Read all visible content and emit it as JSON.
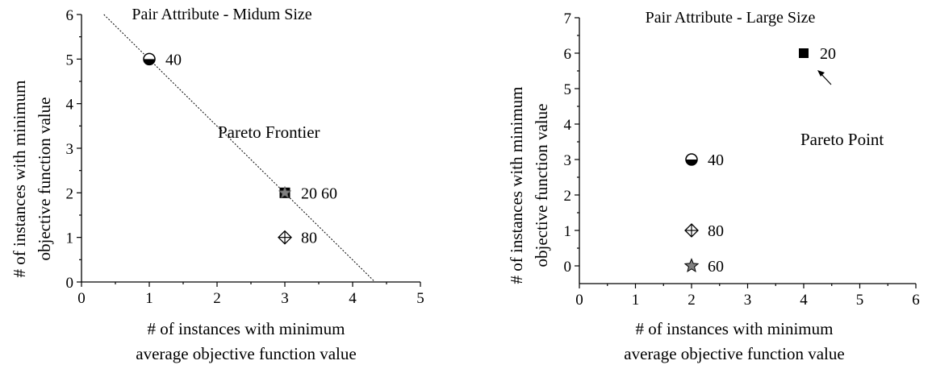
{
  "chart_data": [
    {
      "type": "scatter",
      "title": "Pair Attribute - Midum Size",
      "xlabel": [
        "# of instances with minimum",
        "average objective function value"
      ],
      "ylabel": [
        "# of instances with minimum",
        "objective function value"
      ],
      "xlim": [
        0,
        5
      ],
      "ylim": [
        0,
        6
      ],
      "xticks": [
        "0",
        "1",
        "2",
        "3",
        "4",
        "5"
      ],
      "yticks": [
        "0",
        "1",
        "2",
        "3",
        "4",
        "5",
        "6"
      ],
      "points": [
        {
          "x": 1,
          "y": 5,
          "marker": "half-circle",
          "label": "40"
        },
        {
          "x": 3,
          "y": 2,
          "marker": "square-star",
          "label": "20 60"
        },
        {
          "x": 3,
          "y": 1,
          "marker": "crossed-diamond",
          "label": "80"
        }
      ],
      "frontier": {
        "from": [
          0.33,
          6
        ],
        "to": [
          4.33,
          0
        ]
      },
      "annotations": [
        "Pareto Frontier"
      ]
    },
    {
      "type": "scatter",
      "title": "Pair Attribute - Large Size",
      "xlabel": [
        "# of instances with minimum",
        "average objective function value"
      ],
      "ylabel": [
        "# of instances with minimum",
        "objective function value"
      ],
      "xlim": [
        0,
        6
      ],
      "ylim": [
        -0.5,
        7
      ],
      "xticks": [
        "0",
        "1",
        "2",
        "3",
        "4",
        "5",
        "6"
      ],
      "yticks": [
        "0",
        "1",
        "2",
        "3",
        "4",
        "5",
        "6",
        "7"
      ],
      "points": [
        {
          "x": 4,
          "y": 6,
          "marker": "square",
          "label": "20"
        },
        {
          "x": 2,
          "y": 3,
          "marker": "half-circle",
          "label": "40"
        },
        {
          "x": 2,
          "y": 1,
          "marker": "crossed-diamond",
          "label": "80"
        },
        {
          "x": 2,
          "y": 0,
          "marker": "star",
          "label": "60"
        }
      ],
      "annotations": [
        "Pareto Point"
      ]
    }
  ]
}
